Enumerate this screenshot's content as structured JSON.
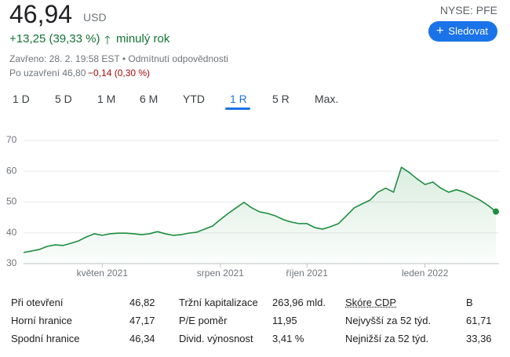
{
  "header": {
    "price": "46,94",
    "currency": "USD",
    "change": "+13,25 (39,33 %)",
    "period": "minulý rok",
    "status": "Zavřeno: 28. 2. 19:58 EST • Odmítnutí odpovědnosti",
    "after_hours": "Po uzavření 46,80",
    "after_change": "−0,14 (0,30 %)",
    "exchange": "NYSE: PFE",
    "follow_button": "Sledovat"
  },
  "tabs": {
    "items": [
      "1 D",
      "5 D",
      "1 M",
      "6 M",
      "YTD",
      "1 R",
      "5 R",
      "Max."
    ],
    "active": 5
  },
  "chart_data": {
    "type": "line",
    "color": "#1e8e3e",
    "categories": [
      null,
      null,
      null,
      null,
      null,
      null,
      null,
      null,
      null,
      null,
      "květen 2021",
      null,
      null,
      null,
      null,
      null,
      null,
      null,
      null,
      null,
      null,
      null,
      null,
      null,
      null,
      "srpen 2021",
      null,
      null,
      null,
      null,
      null,
      null,
      null,
      null,
      null,
      null,
      "říjen 2021",
      null,
      null,
      null,
      null,
      null,
      null,
      null,
      null,
      null,
      null,
      null,
      null,
      null,
      null,
      "leden 2022",
      null,
      null,
      null,
      null,
      null,
      null,
      null,
      null,
      null
    ],
    "values": [
      33.6,
      34.1,
      34.6,
      35.6,
      36.1,
      35.9,
      36.6,
      37.4,
      38.7,
      39.7,
      39.2,
      39.7,
      39.9,
      39.9,
      39.7,
      39.4,
      39.7,
      40.4,
      39.7,
      39.2,
      39.4,
      39.9,
      40.2,
      41.2,
      42.2,
      44.3,
      46.3,
      48.1,
      49.9,
      48.1,
      46.8,
      46.3,
      45.5,
      44.3,
      43.5,
      43.0,
      43.0,
      41.7,
      41.2,
      42.0,
      43.0,
      45.5,
      48.1,
      49.4,
      50.6,
      53.2,
      54.5,
      53.2,
      61.3,
      59.6,
      57.5,
      55.7,
      56.5,
      54.5,
      53.2,
      54.0,
      53.2,
      51.9,
      50.6,
      48.9,
      46.9
    ],
    "ylim": [
      30,
      70
    ],
    "yticks": [
      30,
      40,
      50,
      60,
      70
    ],
    "grid": true
  },
  "stats": {
    "columns": [
      [
        [
          "Při otevření",
          "46,82"
        ],
        [
          "Horní hranice",
          "47,17"
        ],
        [
          "Spodní hranice",
          "46,34"
        ]
      ],
      [
        [
          "Tržní kapitalizace",
          "263,96 mld."
        ],
        [
          "P/E poměr",
          "11,95"
        ],
        [
          "Divid. výnosnost",
          "3,41 %"
        ]
      ],
      [
        [
          "Skóre CDP",
          "B"
        ],
        [
          "Nejvyšší za 52 týd.",
          "61,71"
        ],
        [
          "Nejnižší za 52 týd.",
          "33,36"
        ]
      ]
    ]
  }
}
